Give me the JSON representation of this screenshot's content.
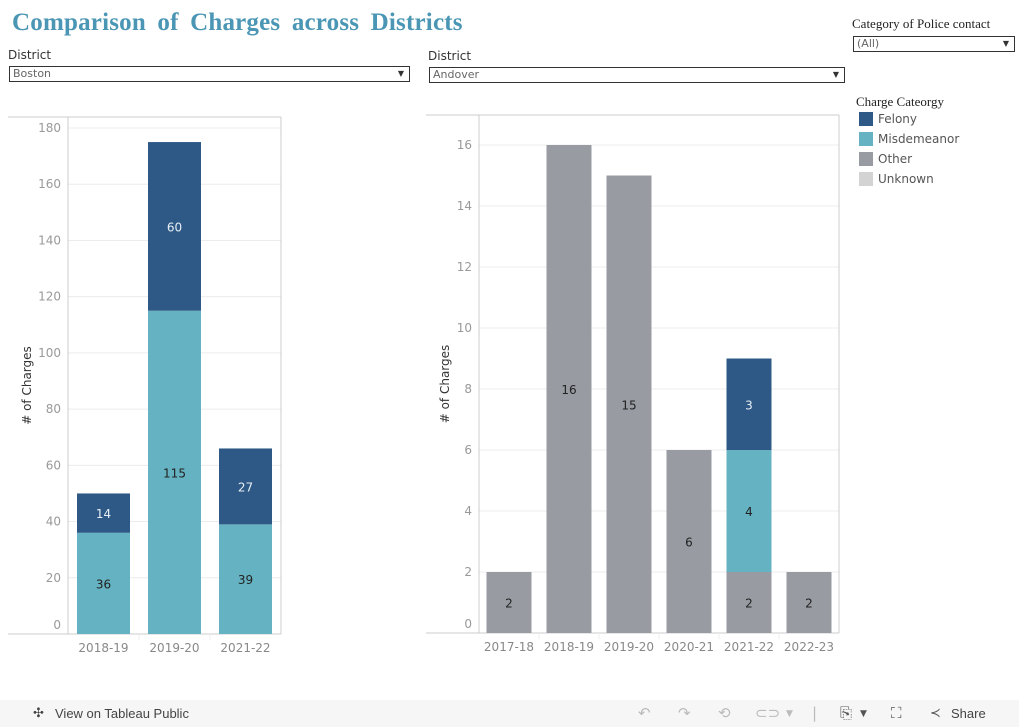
{
  "title": "Comparison of Charges across Districts",
  "filters": {
    "left_district": {
      "label": "District",
      "value": "Boston"
    },
    "right_district": {
      "label": "District",
      "value": "Andover"
    },
    "category": {
      "label": "Category of Police contact",
      "value": "(All)"
    }
  },
  "legend": {
    "title": "Charge Cateorgy",
    "items": [
      {
        "label": "Felony",
        "color": "#2e5986"
      },
      {
        "label": "Misdemeanor",
        "color": "#65b3c2"
      },
      {
        "label": "Other",
        "color": "#989ba2"
      },
      {
        "label": "Unknown",
        "color": "#d3d3d3"
      }
    ]
  },
  "chart_data": [
    {
      "type": "bar",
      "stacked": true,
      "title": "Boston",
      "xlabel": "",
      "ylabel": "# of Charges",
      "ylim": [
        0,
        180
      ],
      "yticks": [
        0,
        20,
        40,
        60,
        80,
        100,
        120,
        140,
        160,
        180
      ],
      "grid": true,
      "categories": [
        "2018-19",
        "2019-20",
        "2021-22"
      ],
      "series": [
        {
          "name": "Other",
          "values": [
            0,
            0,
            0
          ]
        },
        {
          "name": "Misdemeanor",
          "values": [
            36,
            115,
            39
          ]
        },
        {
          "name": "Felony",
          "values": [
            14,
            60,
            27
          ]
        }
      ]
    },
    {
      "type": "bar",
      "stacked": true,
      "title": "Andover",
      "xlabel": "",
      "ylabel": "# of Charges",
      "ylim": [
        0,
        17
      ],
      "yticks": [
        0,
        2,
        4,
        6,
        8,
        10,
        12,
        14,
        16
      ],
      "grid": true,
      "categories": [
        "2017-18",
        "2018-19",
        "2019-20",
        "2020-21",
        "2021-22",
        "2022-23"
      ],
      "series": [
        {
          "name": "Other",
          "values": [
            2,
            16,
            15,
            6,
            2,
            2
          ]
        },
        {
          "name": "Misdemeanor",
          "values": [
            0,
            0,
            0,
            0,
            4,
            0
          ]
        },
        {
          "name": "Felony",
          "values": [
            0,
            0,
            0,
            0,
            3,
            0
          ]
        }
      ]
    }
  ],
  "footer": {
    "view_link": "View on Tableau Public",
    "share_label": "Share"
  }
}
